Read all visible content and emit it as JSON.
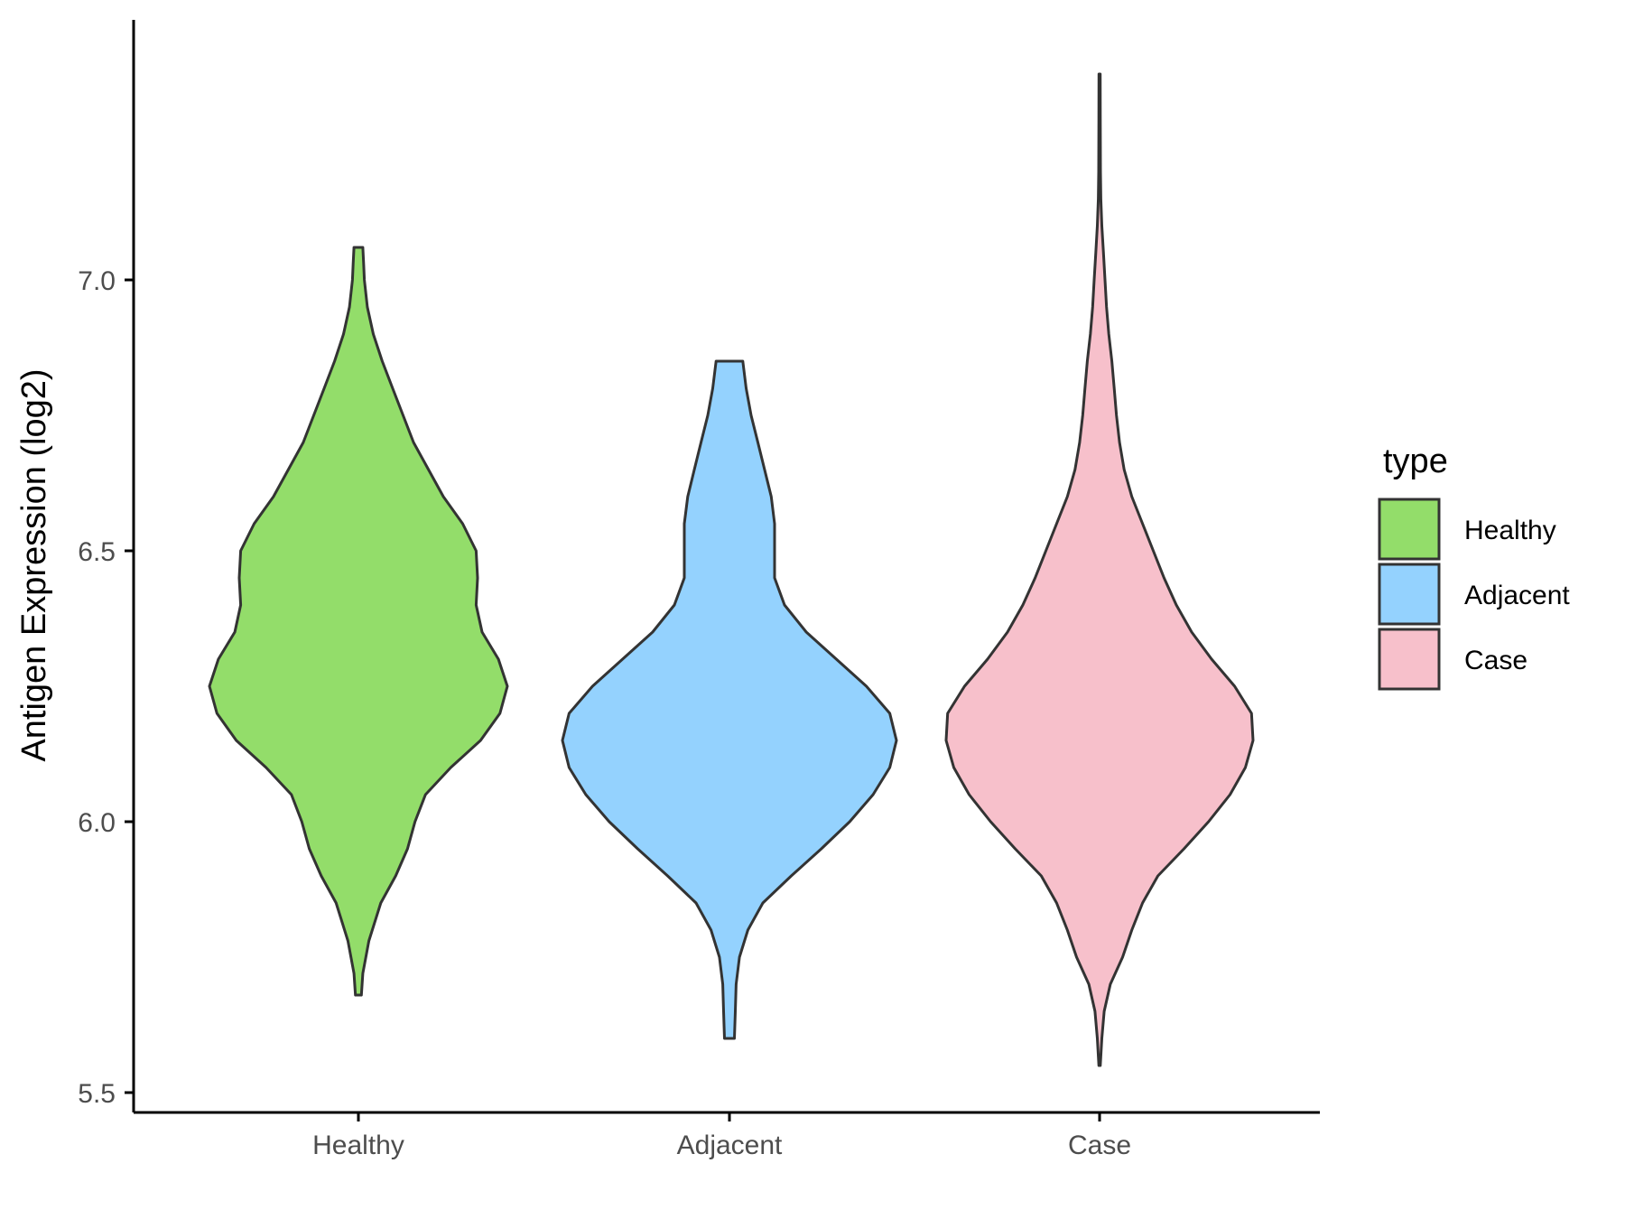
{
  "chart_data": {
    "type": "violin",
    "title": "",
    "xlabel": "",
    "ylabel": "Antigen Expression (log2)",
    "ylim": [
      5.48,
      7.43
    ],
    "yticks": [
      5.5,
      6.0,
      6.5,
      7.0
    ],
    "ytick_labels": [
      "5.5",
      "6.0",
      "6.5",
      "7.0"
    ],
    "categories": [
      "Healthy",
      "Adjacent",
      "Case"
    ],
    "grid": false,
    "legend": {
      "title": "type",
      "position": "right",
      "entries": [
        "Healthy",
        "Adjacent",
        "Case"
      ]
    },
    "series": [
      {
        "name": "Healthy",
        "color": "#93dd6a",
        "min": 5.68,
        "max": 7.06,
        "density_profile": [
          [
            5.68,
            0.02
          ],
          [
            5.72,
            0.03
          ],
          [
            5.78,
            0.07
          ],
          [
            5.85,
            0.15
          ],
          [
            5.9,
            0.25
          ],
          [
            5.95,
            0.33
          ],
          [
            6.0,
            0.38
          ],
          [
            6.05,
            0.45
          ],
          [
            6.1,
            0.62
          ],
          [
            6.15,
            0.82
          ],
          [
            6.2,
            0.95
          ],
          [
            6.25,
            1.0
          ],
          [
            6.3,
            0.94
          ],
          [
            6.35,
            0.83
          ],
          [
            6.4,
            0.79
          ],
          [
            6.45,
            0.8
          ],
          [
            6.5,
            0.79
          ],
          [
            6.55,
            0.7
          ],
          [
            6.6,
            0.57
          ],
          [
            6.65,
            0.47
          ],
          [
            6.7,
            0.37
          ],
          [
            6.75,
            0.3
          ],
          [
            6.8,
            0.23
          ],
          [
            6.85,
            0.16
          ],
          [
            6.9,
            0.1
          ],
          [
            6.95,
            0.06
          ],
          [
            7.0,
            0.04
          ],
          [
            7.03,
            0.035
          ],
          [
            7.06,
            0.03
          ]
        ]
      },
      {
        "name": "Adjacent",
        "color": "#94d2fe",
        "min": 5.6,
        "max": 6.85,
        "density_profile": [
          [
            5.6,
            0.03
          ],
          [
            5.65,
            0.035
          ],
          [
            5.7,
            0.04
          ],
          [
            5.75,
            0.06
          ],
          [
            5.8,
            0.11
          ],
          [
            5.85,
            0.2
          ],
          [
            5.9,
            0.37
          ],
          [
            5.95,
            0.55
          ],
          [
            6.0,
            0.72
          ],
          [
            6.05,
            0.86
          ],
          [
            6.1,
            0.96
          ],
          [
            6.15,
            1.0
          ],
          [
            6.2,
            0.96
          ],
          [
            6.25,
            0.82
          ],
          [
            6.3,
            0.64
          ],
          [
            6.35,
            0.46
          ],
          [
            6.4,
            0.33
          ],
          [
            6.45,
            0.27
          ],
          [
            6.5,
            0.27
          ],
          [
            6.55,
            0.27
          ],
          [
            6.6,
            0.25
          ],
          [
            6.65,
            0.21
          ],
          [
            6.7,
            0.17
          ],
          [
            6.75,
            0.13
          ],
          [
            6.8,
            0.1
          ],
          [
            6.85,
            0.08
          ]
        ]
      },
      {
        "name": "Case",
        "color": "#f7c0cb",
        "min": 5.55,
        "max": 7.38,
        "density_profile": [
          [
            5.55,
            0.005
          ],
          [
            5.6,
            0.015
          ],
          [
            5.65,
            0.03
          ],
          [
            5.7,
            0.07
          ],
          [
            5.75,
            0.15
          ],
          [
            5.8,
            0.21
          ],
          [
            5.85,
            0.28
          ],
          [
            5.9,
            0.38
          ],
          [
            5.95,
            0.55
          ],
          [
            6.0,
            0.71
          ],
          [
            6.05,
            0.85
          ],
          [
            6.1,
            0.95
          ],
          [
            6.15,
            1.0
          ],
          [
            6.2,
            0.99
          ],
          [
            6.25,
            0.88
          ],
          [
            6.3,
            0.73
          ],
          [
            6.35,
            0.6
          ],
          [
            6.4,
            0.5
          ],
          [
            6.45,
            0.42
          ],
          [
            6.5,
            0.35
          ],
          [
            6.55,
            0.28
          ],
          [
            6.6,
            0.21
          ],
          [
            6.65,
            0.16
          ],
          [
            6.7,
            0.13
          ],
          [
            6.75,
            0.11
          ],
          [
            6.8,
            0.095
          ],
          [
            6.85,
            0.08
          ],
          [
            6.9,
            0.06
          ],
          [
            6.95,
            0.045
          ],
          [
            7.0,
            0.035
          ],
          [
            7.05,
            0.025
          ],
          [
            7.1,
            0.015
          ],
          [
            7.15,
            0.008
          ],
          [
            7.2,
            0.006
          ],
          [
            7.3,
            0.005
          ],
          [
            7.38,
            0.004
          ]
        ]
      }
    ]
  }
}
